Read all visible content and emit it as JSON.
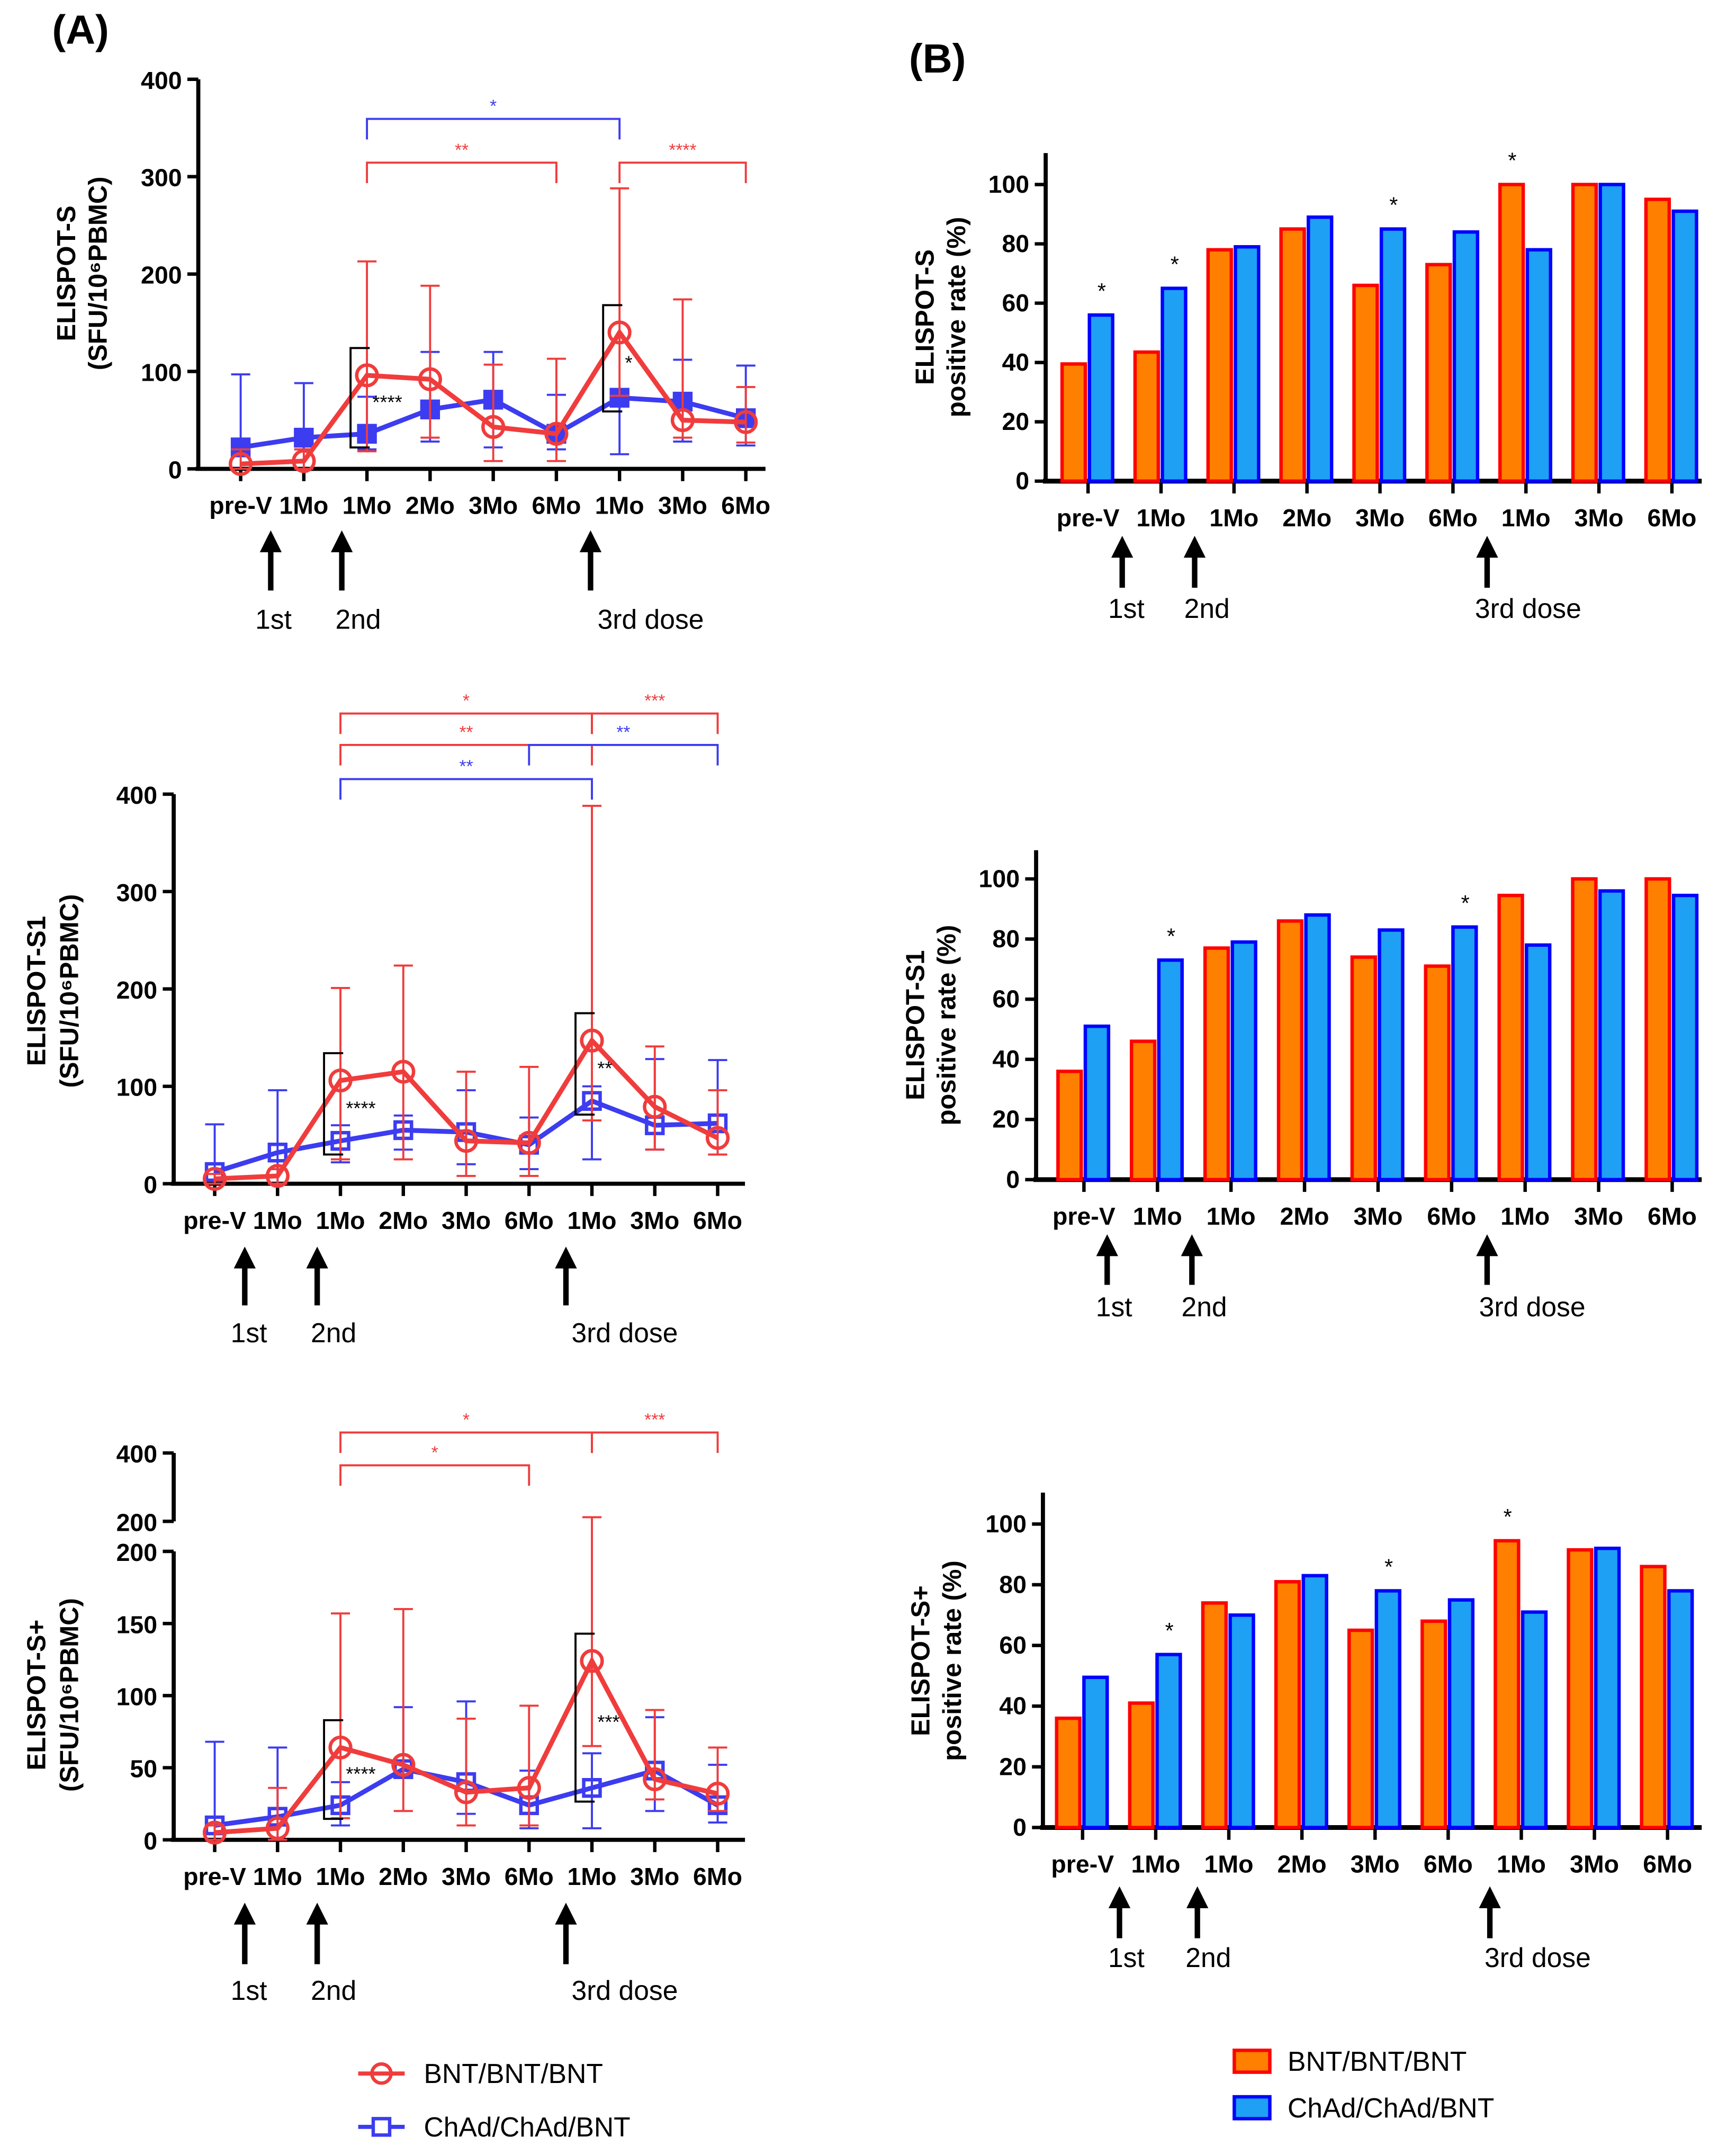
{
  "panel_labels": {
    "a": "(A)",
    "b": "(B)"
  },
  "dose_labels": [
    "1st",
    "2nd",
    "3rd dose"
  ],
  "colors": {
    "bnt_line": "#f03c3c",
    "chad_line": "#3c3cf0",
    "bnt_bar_fill": "#ff8000",
    "bnt_bar_edge": "#ff0000",
    "chad_bar_fill": "#1ea0f5",
    "chad_bar_edge": "#0000ff"
  },
  "legend_a": [
    {
      "label": "BNT/BNT/BNT",
      "marker": "open-circle"
    },
    {
      "label": "ChAd/ChAd/BNT",
      "marker": "open-square"
    }
  ],
  "legend_b": [
    {
      "label": "BNT/BNT/BNT"
    },
    {
      "label": "ChAd/ChAd/BNT"
    }
  ],
  "chart_data": [
    {
      "type": "line",
      "panel": "A",
      "ylabel": "ELISPOT-S",
      "ylabel2": "(SFU/10⁶PBMC)",
      "categories": [
        "pre-V",
        "1Mo",
        "1Mo",
        "2Mo",
        "3Mo",
        "6Mo",
        "1Mo",
        "3Mo",
        "6Mo"
      ],
      "yticks": [
        0,
        100,
        200,
        300,
        400
      ],
      "ylim": [
        0,
        400
      ],
      "series": [
        {
          "name": "BNT/BNT/BNT",
          "mean": [
            5,
            8,
            96,
            92,
            43,
            36,
            140,
            50,
            48
          ],
          "upper": [
            20,
            20,
            213,
            188,
            107,
            113,
            288,
            174,
            84
          ],
          "lower": [
            0,
            0,
            18,
            32,
            8,
            8,
            75,
            32,
            27
          ]
        },
        {
          "name": "ChAd/ChAd/BNT",
          "mean": [
            22,
            32,
            36,
            61,
            71,
            36,
            73,
            69,
            52
          ],
          "upper": [
            97,
            88,
            74,
            120,
            120,
            76,
            75,
            112,
            106
          ],
          "lower": [
            15,
            20,
            20,
            28,
            22,
            20,
            15,
            28,
            24
          ]
        }
      ],
      "comparisons": [
        {
          "from": 2,
          "to": 6,
          "label": "*",
          "group": 1
        },
        {
          "from": 2,
          "to": 5,
          "label": "**",
          "group": 0
        },
        {
          "from": 6,
          "to": 8,
          "label": "****",
          "group": 0
        }
      ],
      "between_groups": [
        {
          "at": 2,
          "label": "****"
        },
        {
          "at": 6,
          "label": "*"
        }
      ]
    },
    {
      "type": "line",
      "panel": "A",
      "ylabel": "ELISPOT-S1",
      "ylabel2": "(SFU/10⁶PBMC)",
      "categories": [
        "pre-V",
        "1Mo",
        "1Mo",
        "2Mo",
        "3Mo",
        "6Mo",
        "1Mo",
        "3Mo",
        "6Mo"
      ],
      "yticks": [
        0,
        100,
        200,
        300,
        400
      ],
      "ylim": [
        0,
        400
      ],
      "series": [
        {
          "name": "BNT/BNT/BNT",
          "mean": [
            5,
            8,
            106,
            115,
            44,
            42,
            147,
            79,
            47
          ],
          "upper": [
            10,
            15,
            201,
            224,
            115,
            120,
            388,
            141,
            96
          ],
          "lower": [
            0,
            0,
            25,
            25,
            8,
            8,
            65,
            35,
            30
          ]
        },
        {
          "name": "ChAd/ChAd/BNT",
          "mean": [
            12,
            32,
            44,
            55,
            53,
            40,
            85,
            60,
            62
          ],
          "upper": [
            61,
            96,
            60,
            70,
            96,
            68,
            100,
            128,
            127
          ],
          "lower": [
            0,
            0,
            22,
            35,
            20,
            15,
            25,
            35,
            30
          ]
        }
      ],
      "comparisons": [
        {
          "from": 2,
          "to": 6,
          "label": "*",
          "group": 0
        },
        {
          "from": 6,
          "to": 8,
          "label": "***",
          "group": 0
        },
        {
          "from": 2,
          "to": 6,
          "label": "**",
          "group": 0,
          "tier": 2
        },
        {
          "from": 5,
          "to": 8,
          "label": "**",
          "group": 1
        },
        {
          "from": 2,
          "to": 6,
          "label": "**",
          "group": 1
        }
      ],
      "between_groups": [
        {
          "at": 2,
          "label": "****"
        },
        {
          "at": 6,
          "label": "**"
        }
      ]
    },
    {
      "type": "line",
      "panel": "A",
      "ylabel": "ELISPOT-S+",
      "ylabel2": "(SFU/10⁶PBMC)",
      "categories": [
        "pre-V",
        "1Mo",
        "1Mo",
        "2Mo",
        "3Mo",
        "6Mo",
        "1Mo",
        "3Mo",
        "6Mo"
      ],
      "yticks": [
        0,
        50,
        100,
        150,
        200
      ],
      "yticks_upper": [
        200,
        400
      ],
      "ylim": [
        0,
        400
      ],
      "axis_break": [
        200,
        200
      ],
      "series": [
        {
          "name": "BNT/BNT/BNT",
          "mean": [
            5,
            8,
            64,
            52,
            33,
            36,
            124,
            42,
            32
          ],
          "upper": [
            10,
            36,
            157,
            160,
            84,
            93,
            212,
            90,
            64
          ],
          "lower": [
            0,
            0,
            15,
            20,
            10,
            10,
            65,
            28,
            20
          ]
        },
        {
          "name": "ChAd/ChAd/BNT",
          "mean": [
            10,
            16,
            24,
            49,
            40,
            24,
            36,
            48,
            24
          ],
          "upper": [
            68,
            64,
            40,
            92,
            96,
            48,
            60,
            85,
            52
          ],
          "lower": [
            0,
            0,
            10,
            45,
            18,
            8,
            8,
            20,
            12
          ]
        }
      ],
      "comparisons": [
        {
          "from": 2,
          "to": 6,
          "label": "*",
          "group": 0
        },
        {
          "from": 6,
          "to": 8,
          "label": "***",
          "group": 0
        },
        {
          "from": 2,
          "to": 5,
          "label": "*",
          "group": 0
        }
      ],
      "between_groups": [
        {
          "at": 2,
          "label": "****"
        },
        {
          "at": 6,
          "label": "***"
        }
      ]
    },
    {
      "type": "bar",
      "panel": "B",
      "ylabel": "ELISPOT-S",
      "ylabel2": "positive rate (%)",
      "categories": [
        "pre-V",
        "1Mo",
        "1Mo",
        "2Mo",
        "3Mo",
        "6Mo",
        "1Mo",
        "3Mo",
        "6Mo"
      ],
      "yticks": [
        0,
        20,
        40,
        60,
        80,
        100
      ],
      "ylim": [
        0,
        110
      ],
      "series": [
        {
          "name": "BNT/BNT/BNT",
          "values": [
            39.5,
            43.5,
            78,
            85,
            66,
            73,
            100,
            100,
            95
          ]
        },
        {
          "name": "ChAd/ChAd/BNT",
          "values": [
            56,
            65,
            79,
            89,
            85,
            84,
            78,
            100,
            91
          ]
        }
      ],
      "significance": [
        {
          "at": 0,
          "label": "*"
        },
        {
          "at": 1,
          "label": "*"
        },
        {
          "at": 4,
          "label": "*"
        },
        {
          "at": 6,
          "label": "*"
        }
      ]
    },
    {
      "type": "bar",
      "panel": "B",
      "ylabel": "ELISPOT-S1",
      "ylabel2": "positive rate (%)",
      "categories": [
        "pre-V",
        "1Mo",
        "1Mo",
        "2Mo",
        "3Mo",
        "6Mo",
        "1Mo",
        "3Mo",
        "6Mo"
      ],
      "yticks": [
        0,
        20,
        40,
        60,
        80,
        100
      ],
      "ylim": [
        0,
        110
      ],
      "series": [
        {
          "name": "BNT/BNT/BNT",
          "values": [
            36,
            46,
            77,
            86,
            74,
            71,
            94.5,
            100,
            100
          ]
        },
        {
          "name": "ChAd/ChAd/BNT",
          "values": [
            51,
            73,
            79,
            88,
            83,
            84,
            78,
            96,
            94.5
          ]
        }
      ],
      "significance": [
        {
          "at": 1,
          "label": "*"
        },
        {
          "at": 5,
          "label": "*"
        }
      ]
    },
    {
      "type": "bar",
      "panel": "B",
      "ylabel": "ELISPOT-S+",
      "ylabel2": "positive rate (%)",
      "categories": [
        "pre-V",
        "1Mo",
        "1Mo",
        "2Mo",
        "3Mo",
        "6Mo",
        "1Mo",
        "3Mo",
        "6Mo"
      ],
      "yticks": [
        0,
        20,
        40,
        60,
        80,
        100
      ],
      "ylim": [
        0,
        110
      ],
      "series": [
        {
          "name": "BNT/BNT/BNT",
          "values": [
            36,
            41,
            74,
            81,
            65,
            68,
            94.5,
            91.5,
            86
          ]
        },
        {
          "name": "ChAd/ChAd/BNT",
          "values": [
            49.5,
            57,
            70,
            83,
            78,
            75,
            71,
            92,
            78
          ]
        }
      ],
      "significance": [
        {
          "at": 1,
          "label": "*"
        },
        {
          "at": 4,
          "label": "*"
        },
        {
          "at": 6,
          "label": "*"
        }
      ]
    }
  ]
}
